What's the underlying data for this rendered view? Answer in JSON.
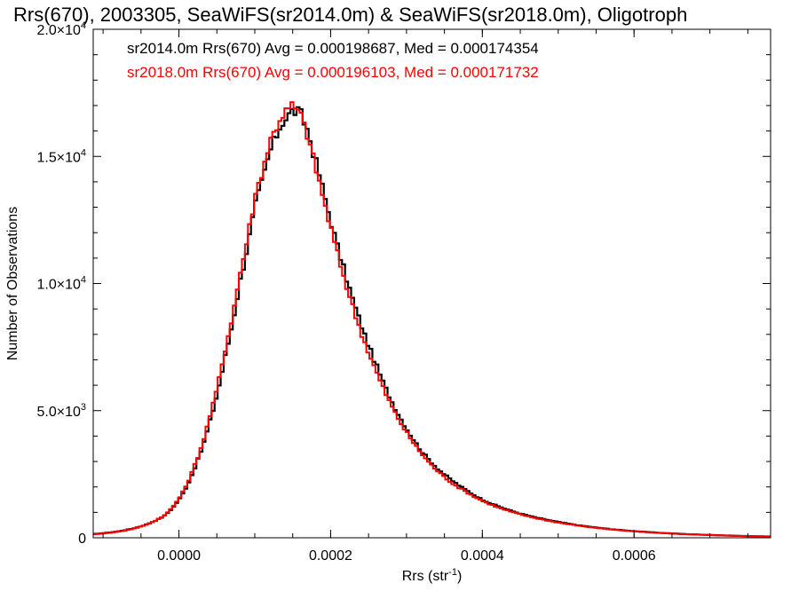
{
  "chart_data": {
    "type": "line",
    "title": "Rrs(670), 2003305, SeaWiFS(sr2014.0m) & SeaWiFS(sr2018.0m), Oligotroph",
    "xlabel": "Rrs (str",
    "xlabel_exp": "-1",
    "xlabel_tail": ")",
    "ylabel": "Number of Observations",
    "xlim": [
      -0.000113,
      0.00078
    ],
    "ylim": [
      0,
      20000
    ],
    "x_ticks": [
      {
        "value": 0.0,
        "label": "0.0000"
      },
      {
        "value": 0.0002,
        "label": "0.0002"
      },
      {
        "value": 0.0004,
        "label": "0.0004"
      },
      {
        "value": 0.0006,
        "label": "0.0006"
      }
    ],
    "y_ticks": [
      {
        "value": 0,
        "mant": "0",
        "exp": ""
      },
      {
        "value": 5000,
        "mant": "5.0×10",
        "exp": "3"
      },
      {
        "value": 10000,
        "mant": "1.0×10",
        "exp": "4"
      },
      {
        "value": 15000,
        "mant": "1.5×10",
        "exp": "4"
      },
      {
        "value": 20000,
        "mant": "2.0×10",
        "exp": "4"
      }
    ],
    "annotations": [
      {
        "text": "sr2014.0m Rrs(670) Avg = 0.000198687, Med = 0.000174354",
        "color": "#000000"
      },
      {
        "text": "sr2018.0m Rrs(670) Avg = 0.000196103, Med = 0.000171732",
        "color": "#ff0000"
      }
    ],
    "x": [
      -0.00011,
      -8e-05,
      -5e-05,
      -2e-05,
      0.0,
      2e-05,
      4e-05,
      6e-05,
      8e-05,
      0.0001,
      0.00012,
      0.000135,
      0.00015,
      0.00016,
      0.00017,
      0.000185,
      0.0002,
      0.00022,
      0.00024,
      0.00026,
      0.00028,
      0.0003,
      0.00032,
      0.00034,
      0.00036,
      0.00038,
      0.0004,
      0.00042,
      0.00045,
      0.0005,
      0.00055,
      0.0006,
      0.00065,
      0.0007,
      0.00078
    ],
    "series": [
      {
        "name": "sr2014.0m",
        "color": "#000000",
        "values": [
          150,
          250,
          450,
          850,
          1500,
          2700,
          4500,
          7000,
          10000,
          13000,
          15200,
          16300,
          16800,
          16700,
          16000,
          14300,
          12500,
          10300,
          8400,
          6800,
          5400,
          4300,
          3400,
          2750,
          2250,
          1850,
          1500,
          1250,
          950,
          620,
          400,
          260,
          170,
          110,
          50
        ]
      },
      {
        "name": "sr2018.0m",
        "color": "#ff0000",
        "values": [
          140,
          240,
          440,
          860,
          1550,
          2800,
          4700,
          7300,
          10300,
          13400,
          15600,
          16600,
          17000,
          16650,
          15800,
          14000,
          12200,
          10000,
          8100,
          6550,
          5200,
          4150,
          3300,
          2650,
          2150,
          1780,
          1450,
          1200,
          920,
          600,
          390,
          250,
          165,
          105,
          50
        ]
      }
    ]
  }
}
